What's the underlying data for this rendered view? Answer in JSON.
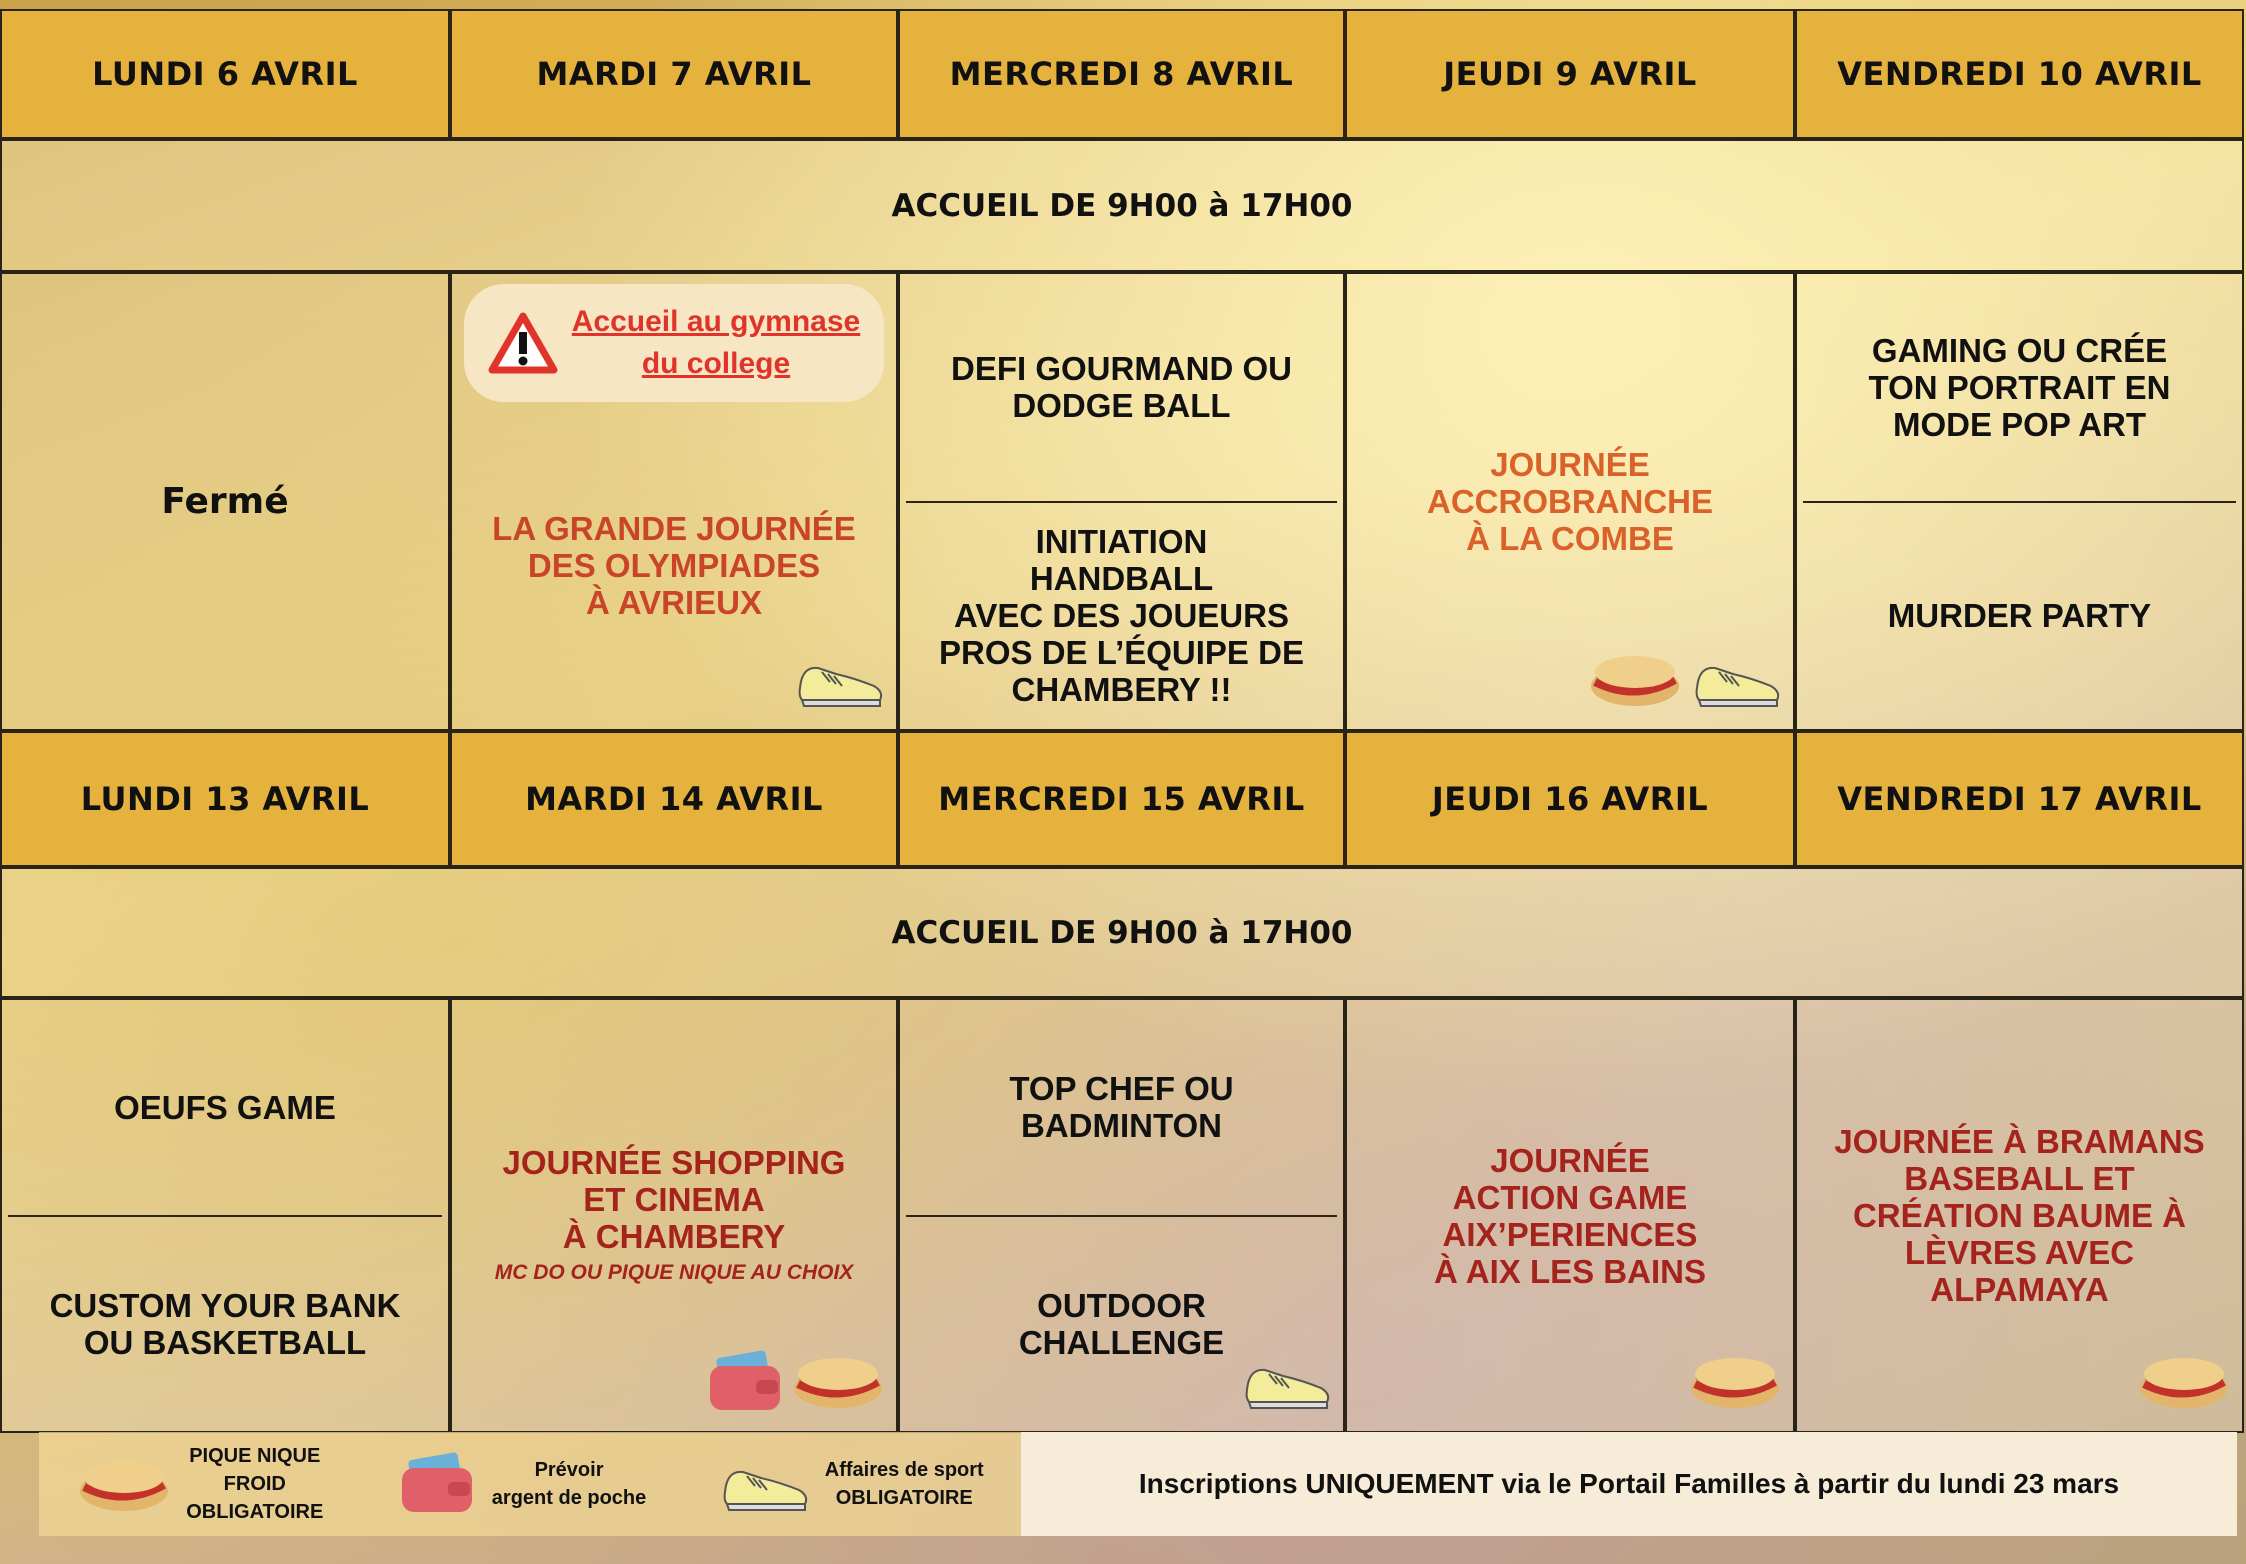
{
  "weeks": [
    {
      "days": [
        "LUNDI 6 AVRIL",
        "MARDI 7 AVRIL",
        "MERCREDI 8 AVRIL",
        "JEUDI 9 AVRIL",
        "VENDREDI 10 AVRIL"
      ],
      "hours": "ACCUEIL DE 9H00 à 17H00",
      "cells": [
        {
          "activities": [
            {
              "lines": [
                "Fermé"
              ],
              "color": "#111111"
            }
          ]
        },
        {
          "notice": [
            "Accueil au gymnase",
            "du college"
          ],
          "activities": [
            {
              "lines": [
                "LA GRANDE JOURNÉE",
                "DES OLYMPIADES",
                "À AVRIEUX"
              ],
              "color": "#c8452a"
            }
          ]
        },
        {
          "activities": [
            {
              "lines": [
                "DEFI GOURMAND OU",
                "DODGE BALL"
              ],
              "color": "#111111"
            },
            {
              "lines": [
                "INITIATION",
                "HANDBALL",
                "AVEC DES JOUEURS",
                "PROS DE L’ÉQUIPE DE",
                "CHAMBERY !!"
              ],
              "color": "#111111"
            }
          ]
        },
        {
          "activities": [
            {
              "lines": [
                "JOURNÉE",
                "ACCROBRANCHE",
                "À LA COMBE"
              ],
              "color": "#d9622b"
            }
          ]
        },
        {
          "activities": [
            {
              "lines": [
                "GAMING OU CRÉE",
                "TON PORTRAIT EN",
                "MODE POP ART"
              ],
              "color": "#111111"
            },
            {
              "lines": [
                "MURDER PARTY"
              ],
              "color": "#111111"
            }
          ]
        }
      ]
    },
    {
      "days": [
        "LUNDI 13 AVRIL",
        "MARDI 14 AVRIL",
        "MERCREDI 15 AVRIL",
        "JEUDI 16 AVRIL",
        "VENDREDI 17 AVRIL"
      ],
      "hours": "ACCUEIL DE 9H00 à 17H00",
      "cells": [
        {
          "activities": [
            {
              "lines": [
                "OEUFS GAME"
              ],
              "color": "#111111"
            },
            {
              "lines": [
                "CUSTOM YOUR BANK",
                "OU BASKETBALL"
              ],
              "color": "#111111"
            }
          ]
        },
        {
          "activities": [
            {
              "lines": [
                "JOURNÉE SHOPPING",
                "ET CINEMA",
                "À CHAMBERY"
              ],
              "color": "#a4231c",
              "note": "MC DO OU PIQUE NIQUE AU CHOIX"
            }
          ]
        },
        {
          "activities": [
            {
              "lines": [
                "TOP CHEF OU",
                "BADMINTON"
              ],
              "color": "#111111"
            },
            {
              "lines": [
                "OUTDOOR",
                "CHALLENGE"
              ],
              "color": "#111111"
            }
          ]
        },
        {
          "activities": [
            {
              "lines": [
                "JOURNÉE",
                "ACTION GAME",
                "AIX’PERIENCES",
                "À AIX LES BAINS"
              ],
              "color": "#a4231c"
            }
          ]
        },
        {
          "activities": [
            {
              "lines": [
                "JOURNÉE À BRAMANS",
                "BASEBALL ET",
                "CRÉATION BAUME À",
                "LÈVRES AVEC",
                "ALPAMAYA"
              ],
              "color": "#a4231c"
            }
          ]
        }
      ]
    }
  ],
  "legend": [
    [
      "PIQUE NIQUE",
      "FROID",
      "OBLIGATOIRE"
    ],
    [
      "Prévoir",
      "argent de poche"
    ],
    [
      "Affaires de sport",
      "OBLIGATOIRE"
    ]
  ],
  "registration": "Inscriptions UNIQUEMENT via le Portail Familles à partir du lundi 23 mars"
}
